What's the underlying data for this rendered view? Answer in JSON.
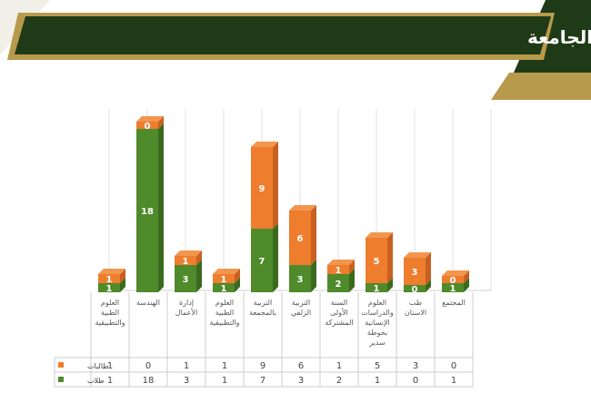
{
  "header": {
    "title": "توزيع الفائزين (طلاب وطالبات) وفقا لكليات الجامعة"
  },
  "colors": {
    "banner_dark": "#1f3a17",
    "banner_gold": "#b89a4c",
    "male": "#4f8a2b",
    "male_side": "#3b6a1f",
    "male_top": "#6aa83e",
    "female": "#ee7d2e",
    "female_side": "#c86020",
    "female_top": "#f2964e"
  },
  "chart_data": {
    "type": "bar",
    "stacked": true,
    "categories": [
      "العلوم الطبية والتطبيقية",
      "الهندسة",
      "إدارة الأعمال",
      "العلوم الطبية والتطبيقية",
      "التربية بالمجمعة",
      "التربية الزلفي",
      "السنة الأولى المشتركة",
      "العلوم والدراسات الإنسانية بحوطة سدير",
      "طب الاسنان",
      "المجتمع"
    ],
    "series": [
      {
        "name": "طلاب",
        "values": [
          1,
          18,
          3,
          1,
          7,
          3,
          2,
          1,
          0,
          1
        ]
      },
      {
        "name": "طالبات",
        "values": [
          1,
          0,
          1,
          1,
          9,
          6,
          1,
          5,
          3,
          0
        ]
      }
    ],
    "ylim": [
      0,
      20
    ],
    "grid": true,
    "legend": "table-left"
  }
}
